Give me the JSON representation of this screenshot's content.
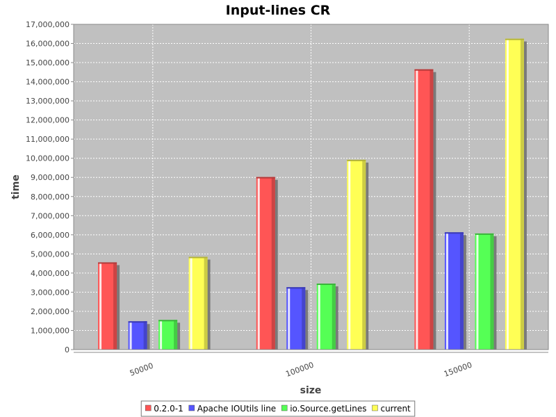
{
  "chart_data": {
    "type": "bar",
    "title": "Input-lines CR",
    "xlabel": "size",
    "ylabel": "time",
    "categories": [
      "50000",
      "100000",
      "150000"
    ],
    "ylim": [
      0,
      17000000
    ],
    "ytick_step": 1000000,
    "ytick_labels": [
      "0",
      "1,000,000",
      "2,000,000",
      "3,000,000",
      "4,000,000",
      "5,000,000",
      "6,000,000",
      "7,000,000",
      "8,000,000",
      "9,000,000",
      "10,000,000",
      "11,000,000",
      "12,000,000",
      "13,000,000",
      "14,000,000",
      "15,000,000",
      "16,000,000",
      "17,000,000"
    ],
    "grid": true,
    "legend_position": "bottom",
    "plot_background": "#c0c0c0",
    "series": [
      {
        "name": "0.2.0-1",
        "color": "#ff5555",
        "values": [
          4560000,
          9020000,
          14650000
        ]
      },
      {
        "name": "Apache IOUtils line",
        "color": "#5555ff",
        "values": [
          1480000,
          3260000,
          6130000
        ]
      },
      {
        "name": "io.Source.getLines",
        "color": "#55ff55",
        "values": [
          1550000,
          3450000,
          6070000
        ]
      },
      {
        "name": "current",
        "color": "#ffff55",
        "values": [
          4850000,
          9920000,
          16250000
        ]
      }
    ]
  }
}
